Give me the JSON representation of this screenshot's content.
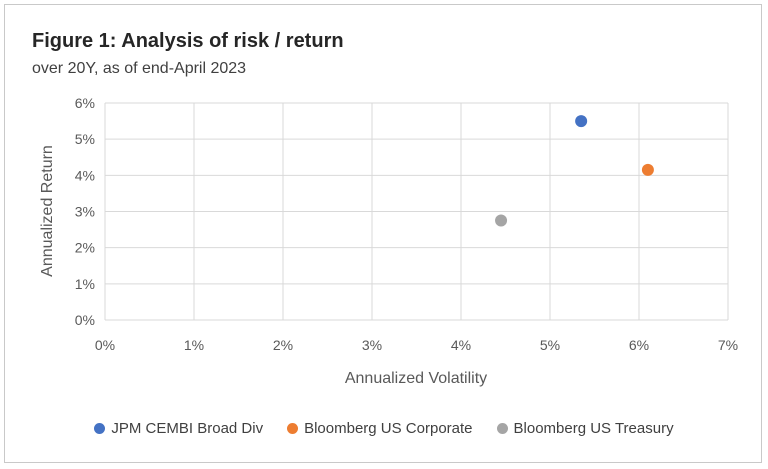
{
  "title": "Figure 1: Analysis of risk / return",
  "subtitle": "over 20Y, as of end-April 2023",
  "chart_data": {
    "type": "scatter",
    "xlabel": "Annualized Volatility",
    "ylabel": "Annualized Return",
    "xlim": [
      0,
      7
    ],
    "ylim": [
      0,
      6
    ],
    "x_ticks": [
      "0%",
      "1%",
      "2%",
      "3%",
      "4%",
      "5%",
      "6%",
      "7%"
    ],
    "y_ticks": [
      "0%",
      "1%",
      "2%",
      "3%",
      "4%",
      "5%",
      "6%"
    ],
    "grid": true,
    "legend_position": "bottom",
    "series": [
      {
        "name": "JPM CEMBI Broad Div",
        "color": "#4472C4",
        "x": 5.35,
        "y": 5.5
      },
      {
        "name": "Bloomberg US Corporate",
        "color": "#ED7D31",
        "x": 6.1,
        "y": 4.15
      },
      {
        "name": "Bloomberg US Treasury",
        "color": "#A5A5A5",
        "x": 4.45,
        "y": 2.75
      }
    ]
  }
}
